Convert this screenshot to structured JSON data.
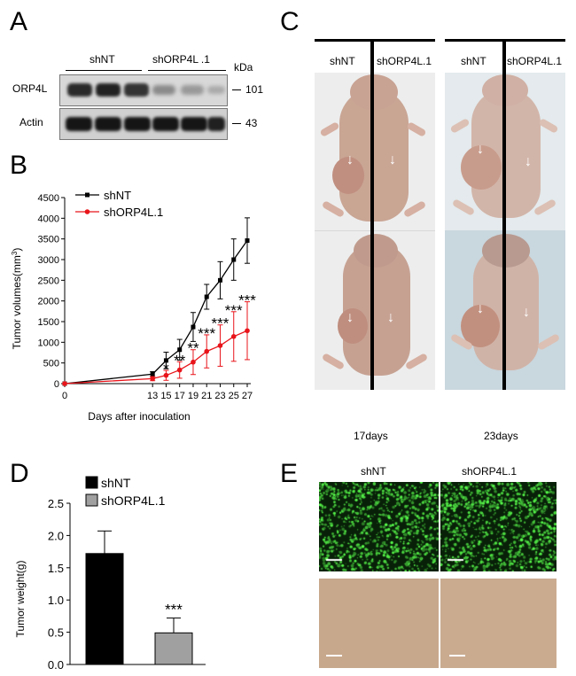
{
  "panels": {
    "a": "A",
    "b": "B",
    "c": "C",
    "d": "D",
    "e": "E"
  },
  "blot": {
    "groups": [
      "shNT",
      "shORP4L .1"
    ],
    "kda_label": "kDa",
    "rows": [
      {
        "label": "ORP4L",
        "kda": "101"
      },
      {
        "label": "Actin",
        "kda": "43"
      }
    ]
  },
  "chart_data": [
    {
      "type": "line",
      "panel": "B",
      "x": [
        0,
        13,
        15,
        17,
        19,
        21,
        23,
        25,
        27
      ],
      "xlabel": "Days after inoculation",
      "ylabel_main": "Tumor volumes(mm",
      "ylabel_sup": "3",
      "ylabel_close": ")",
      "ylim": [
        0,
        4500
      ],
      "yticks": [
        0,
        500,
        1000,
        1500,
        2000,
        2500,
        3000,
        3500,
        4000,
        4500
      ],
      "legend_position": "top-left",
      "series": [
        {
          "name": "shNT",
          "color": "#000000",
          "values": [
            0,
            230,
            560,
            820,
            1370,
            2100,
            2500,
            3000,
            3460
          ],
          "errors": [
            0,
            60,
            200,
            250,
            350,
            300,
            450,
            500,
            550
          ]
        },
        {
          "name": "shORP4L.1",
          "color": "#e8141a",
          "values": [
            0,
            120,
            200,
            330,
            520,
            780,
            920,
            1140,
            1280
          ],
          "errors": [
            0,
            50,
            120,
            200,
            300,
            400,
            500,
            600,
            700
          ]
        }
      ],
      "annotations": [
        {
          "x": 15,
          "text": "*"
        },
        {
          "x": 17,
          "text": "**"
        },
        {
          "x": 19,
          "text": "**"
        },
        {
          "x": 21,
          "text": "***"
        },
        {
          "x": 23,
          "text": "***"
        },
        {
          "x": 25,
          "text": "***"
        },
        {
          "x": 27,
          "text": "***"
        }
      ]
    },
    {
      "type": "bar",
      "panel": "D",
      "categories": [
        "shNT",
        "shORP4L.1"
      ],
      "values": [
        1.72,
        0.49
      ],
      "errors": [
        0.35,
        0.23
      ],
      "colors": [
        "#000000",
        "#a0a0a0"
      ],
      "ylabel": "Tumor weight(g)",
      "ylim": [
        0,
        2.5
      ],
      "yticks": [
        "0.0",
        "0.5",
        "1.0",
        "1.5",
        "2.0",
        "2.5"
      ],
      "legend_position": "top-left",
      "annotation": "***"
    }
  ],
  "mice": {
    "column_labels": [
      "shNT",
      "shORP4L.1",
      "shNT",
      "shORP4L.1"
    ],
    "timepoints": [
      "17days",
      "23days"
    ]
  },
  "cells": {
    "labels": [
      "shNT",
      "shORP4L.1"
    ]
  }
}
